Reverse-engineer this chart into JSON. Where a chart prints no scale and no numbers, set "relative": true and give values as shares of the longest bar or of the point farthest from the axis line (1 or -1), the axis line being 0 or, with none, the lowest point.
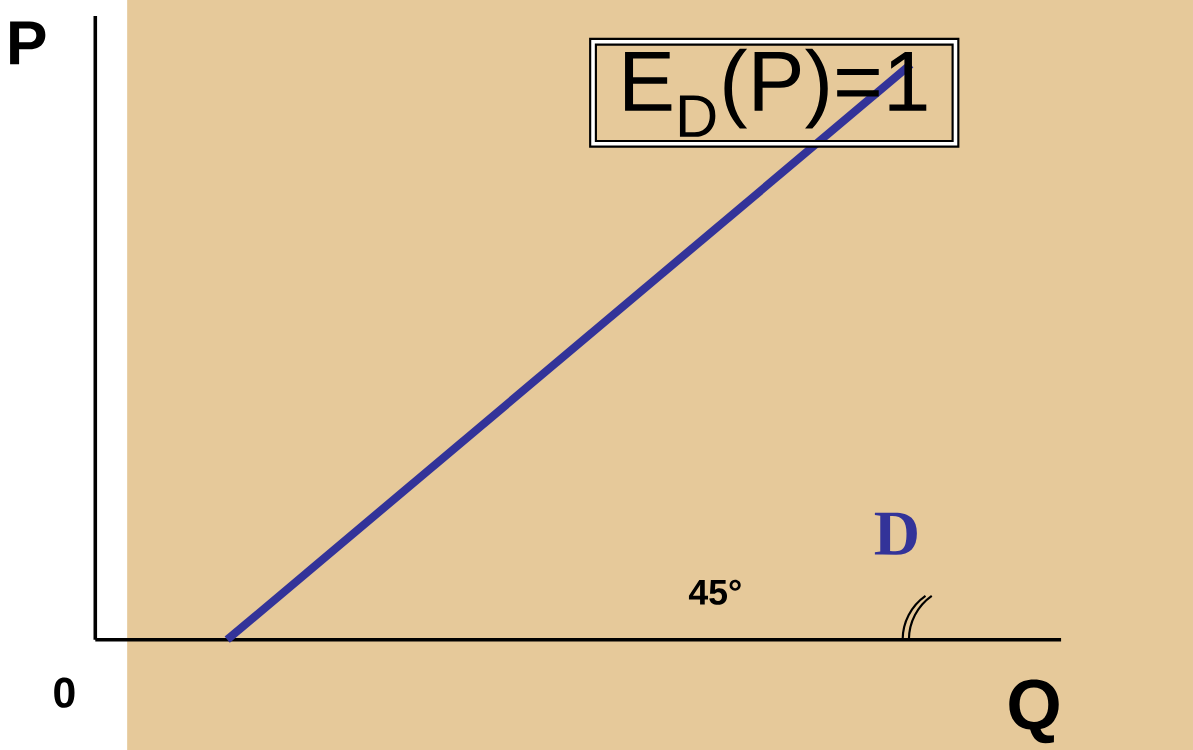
{
  "chart_data": {
    "type": "line",
    "relative": true,
    "xlabel": "Q",
    "ylabel": "P",
    "categories": [
      null,
      null
    ],
    "series": [
      {
        "name": "D",
        "color": "#333399",
        "values": [
          0,
          1
        ]
      }
    ],
    "annotations": [
      "0",
      "E$_{D}$(P)=1",
      "45°"
    ]
  }
}
